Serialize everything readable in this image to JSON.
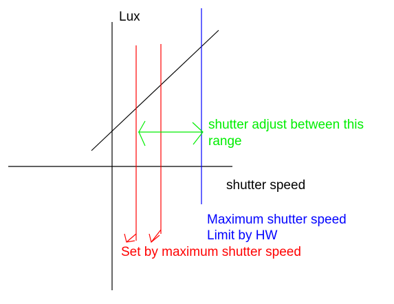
{
  "labels": {
    "y_axis": "Lux",
    "x_axis": "shutter speed",
    "adjust_line1": "shutter adjust between this",
    "adjust_line2": "range",
    "max_line1": "Maximum shutter speed",
    "max_line2": "Limit by HW",
    "set_by": "Set by maximum shutter speed"
  },
  "colors": {
    "axes": "#000000",
    "hw_limit": "#0000ff",
    "set_limit": "#ff0000",
    "range": "#00ee00",
    "text": "#000000"
  }
}
